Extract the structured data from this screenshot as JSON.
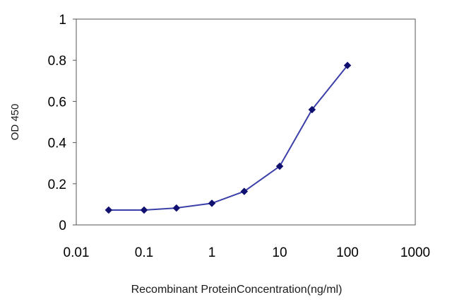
{
  "chart_data": {
    "type": "line",
    "title": "",
    "xlabel": "Recombinant ProteinConcentration(ng/ml)",
    "ylabel": "OD 450",
    "x_scale": "log",
    "xlim": [
      0.01,
      1000
    ],
    "ylim": [
      0,
      1
    ],
    "x_ticks": [
      "0.01",
      "0.1",
      "1",
      "10",
      "100",
      "1000"
    ],
    "y_ticks": [
      "0",
      "0.2",
      "0.4",
      "0.6",
      "0.8",
      "1"
    ],
    "grid": false,
    "legend": "none",
    "series": [
      {
        "x": [
          0.03,
          0.1,
          0.3,
          1,
          3,
          10,
          30,
          100
        ],
        "y": [
          0.072,
          0.072,
          0.082,
          0.105,
          0.163,
          0.285,
          0.56,
          0.775
        ],
        "color": "#3b3fa8",
        "marker_color": "#101070"
      }
    ]
  }
}
